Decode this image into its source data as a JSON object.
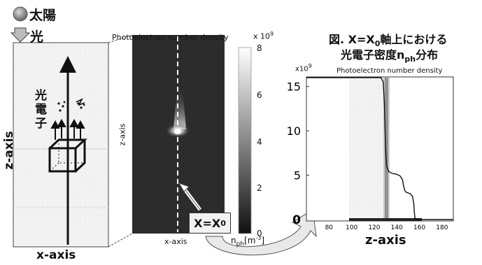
{
  "legend": {
    "sun_label": "太陽",
    "light_label": "光",
    "sun_color": "#8a8a8a"
  },
  "left_panel": {
    "z_axis_label": "z-axis",
    "x_axis_label": "x-axis",
    "photoelectron_label_chars": [
      "光",
      "電",
      "子"
    ]
  },
  "middle_panel": {
    "title": "Photoelectron number density",
    "z_axis_label": "z-axis",
    "x_axis_label": "x-axis",
    "colorbar_exponent": "x 10",
    "colorbar_exponent_power": "9",
    "colorbar_ticks": [
      "8",
      "6",
      "4",
      "2",
      "0"
    ],
    "colorbar_unit": "n",
    "colorbar_unit_sub": "ph",
    "colorbar_unit_tail": "[m",
    "colorbar_unit_sup": "-3",
    "colorbar_unit_end": "]",
    "x0_label": "X=X",
    "x0_sub": "0"
  },
  "right_panel": {
    "title_line1_prefix": "図. ",
    "title_line1_x": "X=X",
    "title_line1_sub": "0",
    "title_line1_suffix": "軸上における",
    "title_line2_prefix": "光電子密度",
    "title_line2_n": "n",
    "title_line2_sub": "ph",
    "title_line2_suffix": "分布",
    "subtitle": "Photoelectron number density",
    "x_axis_label": "z-axis",
    "y_exponent": "x10",
    "y_exponent_power": "9"
  },
  "chart_data": {
    "type": "line",
    "title": "Photoelectron number density",
    "xlabel": "z-axis",
    "ylabel": "",
    "xlim": [
      60,
      190
    ],
    "ylim": [
      0,
      16
    ],
    "x_ticks": [
      "0",
      "80",
      "100",
      "120",
      "140",
      "160",
      "180"
    ],
    "y_ticks": [
      "0",
      "5",
      "10",
      "15"
    ],
    "y_scale_note": "x10^9",
    "series": [
      {
        "x": [
          60,
          100,
          120,
          126,
          128,
          129,
          130,
          131,
          133,
          136,
          140,
          143,
          145,
          146,
          147,
          148,
          150,
          152,
          154,
          155,
          155.5,
          156,
          157,
          160,
          190
        ],
        "y": [
          16.5,
          16.5,
          16.4,
          16.2,
          15.5,
          13.0,
          8.0,
          6.0,
          5.4,
          5.2,
          5.1,
          4.9,
          4.5,
          3.8,
          3.3,
          3.1,
          3.0,
          2.9,
          2.6,
          1.8,
          0.8,
          0.2,
          0.05,
          0.0,
          0.0
        ]
      }
    ]
  }
}
